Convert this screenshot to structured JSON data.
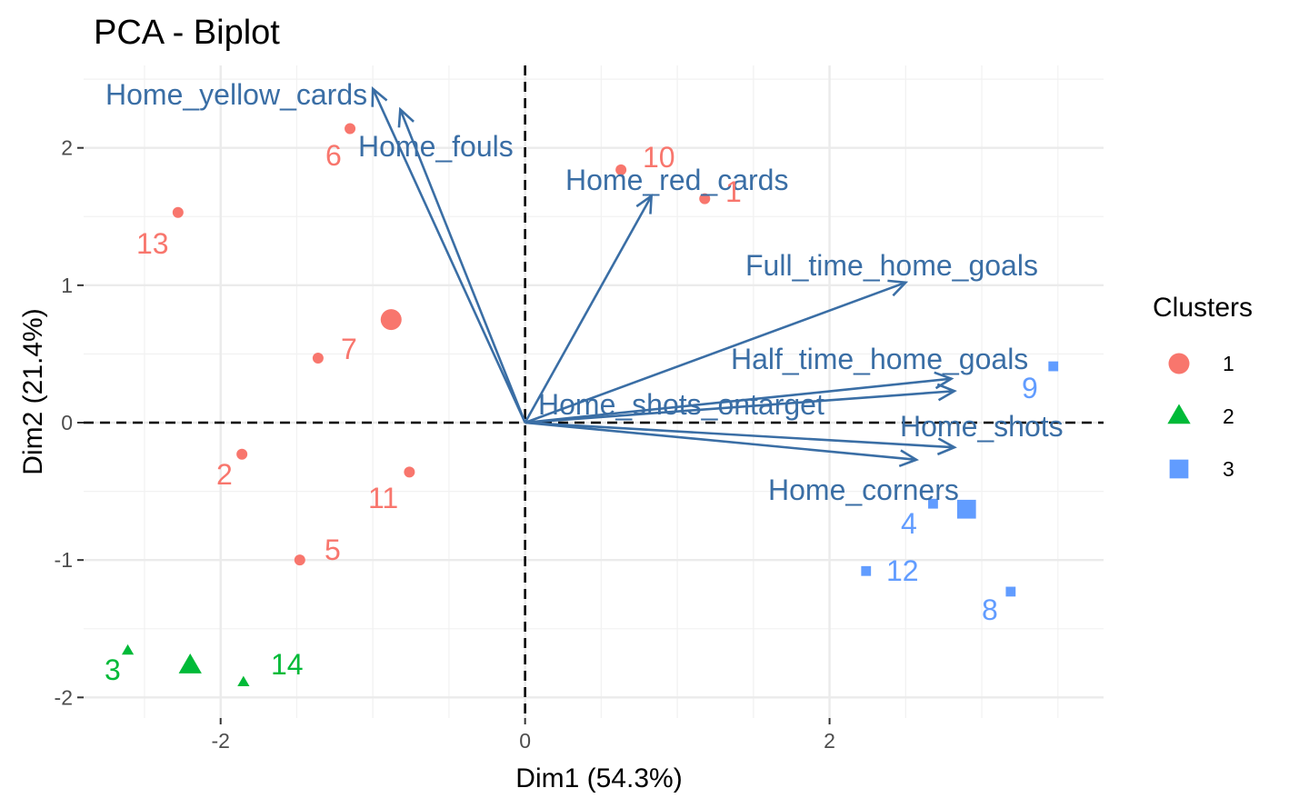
{
  "chart_data": {
    "type": "scatter",
    "title": "PCA - Biplot",
    "xlabel": "Dim1 (54.3%)",
    "ylabel": "Dim2 (21.4%)",
    "xlim": [
      -2.9,
      3.8
    ],
    "ylim": [
      -2.15,
      2.6
    ],
    "x_ticks": [
      -2,
      0,
      2
    ],
    "y_ticks": [
      -2,
      -1,
      0,
      1,
      2
    ],
    "grid": true,
    "legend": {
      "title": "Clusters",
      "position": "right",
      "entries": [
        {
          "label": "1",
          "color": "#F8766D",
          "shape": "circle"
        },
        {
          "label": "2",
          "color": "#00BA38",
          "shape": "triangle"
        },
        {
          "label": "3",
          "color": "#619CFF",
          "shape": "square"
        }
      ]
    },
    "points": [
      {
        "label": "1",
        "x": 1.18,
        "y": 1.63,
        "cluster": "1"
      },
      {
        "label": "2",
        "x": -1.86,
        "y": -0.23,
        "cluster": "1"
      },
      {
        "label": "3",
        "x": -2.61,
        "y": -1.66,
        "cluster": "2"
      },
      {
        "label": "4",
        "x": 2.68,
        "y": -0.59,
        "cluster": "3"
      },
      {
        "label": "5",
        "x": -1.48,
        "y": -1.0,
        "cluster": "1"
      },
      {
        "label": "6",
        "x": -1.15,
        "y": 2.14,
        "cluster": "1"
      },
      {
        "label": "7",
        "x": -1.36,
        "y": 0.47,
        "cluster": "1"
      },
      {
        "label": "8",
        "x": 3.19,
        "y": -1.23,
        "cluster": "3"
      },
      {
        "label": "9",
        "x": 3.47,
        "y": 0.41,
        "cluster": "3"
      },
      {
        "label": "10",
        "x": 0.63,
        "y": 1.84,
        "cluster": "1"
      },
      {
        "label": "11",
        "x": -0.76,
        "y": -0.36,
        "cluster": "1"
      },
      {
        "label": "12",
        "x": 2.24,
        "y": -1.08,
        "cluster": "3"
      },
      {
        "label": "13",
        "x": -2.28,
        "y": 1.53,
        "cluster": "1"
      },
      {
        "label": "14",
        "x": -1.85,
        "y": -1.89,
        "cluster": "2"
      }
    ],
    "centroids": [
      {
        "cluster": "1",
        "x": -0.88,
        "y": 0.75
      },
      {
        "cluster": "2",
        "x": -2.2,
        "y": -1.77
      },
      {
        "cluster": "3",
        "x": 2.9,
        "y": -0.63
      }
    ],
    "variables": [
      {
        "name": "Home_yellow_cards",
        "x": -1.0,
        "y": 2.43
      },
      {
        "name": "Home_fouls",
        "x": -0.82,
        "y": 2.28
      },
      {
        "name": "Home_red_cards",
        "x": 0.83,
        "y": 1.65
      },
      {
        "name": "Full_time_home_goals",
        "x": 2.5,
        "y": 1.02
      },
      {
        "name": "Half_time_home_goals",
        "x": 2.8,
        "y": 0.32
      },
      {
        "name": "Home_shots_ontarget",
        "x": 2.82,
        "y": 0.23
      },
      {
        "name": "Home_shots",
        "x": 2.82,
        "y": -0.18
      },
      {
        "name": "Home_corners",
        "x": 2.57,
        "y": -0.27
      }
    ]
  }
}
